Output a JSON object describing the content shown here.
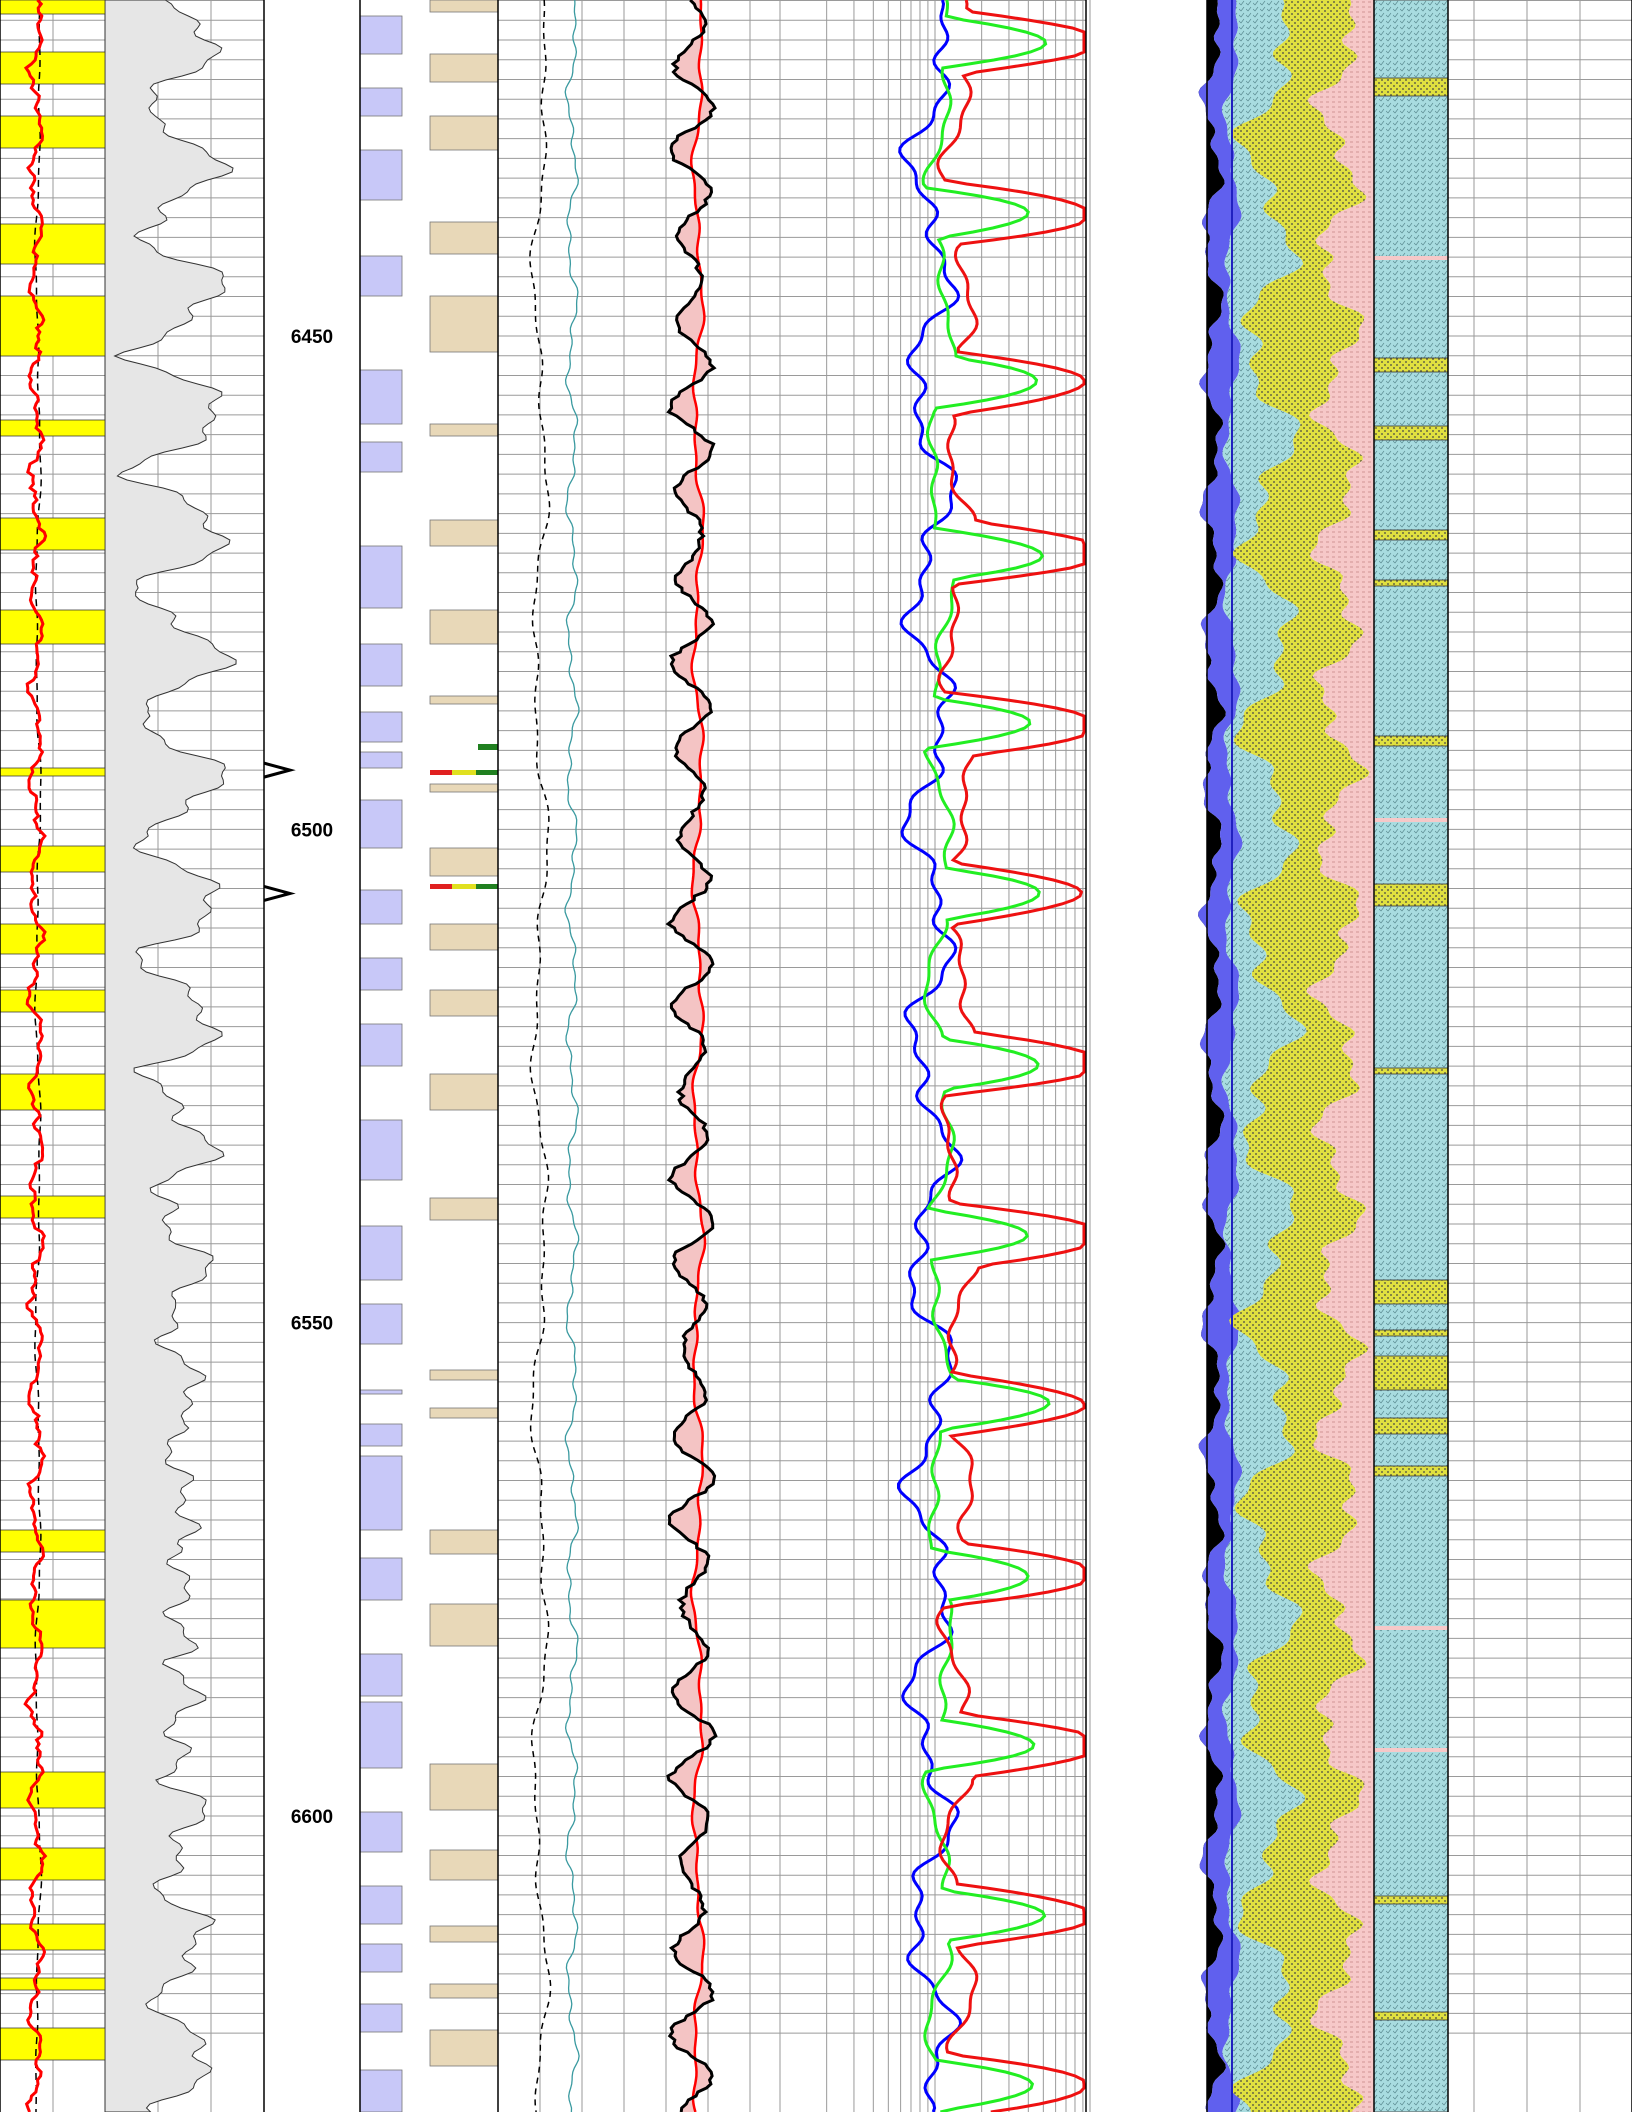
{
  "chart_data": {
    "type": "well-log",
    "depth_unit": "",
    "depth_range": [
      6403,
      6623
    ],
    "depth_labels": [
      "6450",
      "6500",
      "6550",
      "6600"
    ],
    "depth_label_values": [
      6450,
      6500,
      6550,
      6600
    ],
    "grid": true,
    "tracks": [
      {
        "name": "",
        "content": "gamma ray (grey shading) with red resistivity curve, black dashed baseline, yellow sand flags"
      },
      {
        "name": "",
        "content": "depth track"
      },
      {
        "name": "",
        "content": "interpreted intervals (blue and tan blocks, colored flags)"
      },
      {
        "name": "",
        "content": "black dashed and teal curves, black curve with red curve and pink fill"
      },
      {
        "name": "",
        "content": "logarithmic grid with blue, green and red resistivity curves"
      },
      {
        "name": "",
        "content": "lithology fill: black, blue, light-blue, yellow, pink"
      },
      {
        "name": "",
        "content": "lithology column: light-blue, yellow, pink"
      }
    ],
    "tops_markers": [
      6494,
      6506.5
    ],
    "colors": {
      "gr_fill": "#e6e6e6",
      "sand_flag": "#ffff00",
      "resistivity": "#ff0000",
      "blue_blocks": "#c8c8f8",
      "tan_blocks": "#e8d8b8",
      "curve_blue": "#0000ff",
      "curve_green": "#22ee22",
      "curve_red": "#ee1111",
      "lith_blue": "#6060ee",
      "lith_lightblue": "#a8dce0",
      "lith_yellow": "#e0e040",
      "lith_pink": "#f6c8c8",
      "teal": "#3a9aa0"
    }
  }
}
